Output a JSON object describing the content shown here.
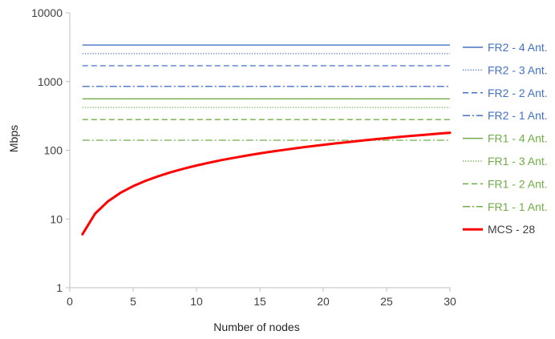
{
  "chart_data": {
    "type": "line",
    "title": "",
    "xlabel": "Number of nodes",
    "ylabel": "Mbps",
    "xlim": [
      0,
      30
    ],
    "ylim": [
      1,
      10000
    ],
    "yscale": "log",
    "grid": false,
    "legend_position": "right",
    "x_ticks": [
      "0",
      "5",
      "10",
      "15",
      "20",
      "25",
      "30"
    ],
    "x_tick_values": [
      0,
      5,
      10,
      15,
      20,
      25,
      30
    ],
    "y_ticks": [
      "1",
      "10",
      "100",
      "1000",
      "10000"
    ],
    "y_tick_values": [
      1,
      10,
      100,
      1000,
      10000
    ],
    "series": [
      {
        "name": "FR2 - 4 Ant.",
        "color": "#4472C4",
        "style": "solid",
        "x": [
          1,
          30
        ],
        "y": [
          3400,
          3400
        ]
      },
      {
        "name": "FR2 - 3 Ant.",
        "color": "#4472C4",
        "style": "dotted",
        "x": [
          1,
          30
        ],
        "y": [
          2550,
          2550
        ]
      },
      {
        "name": "FR2 - 2 Ant.",
        "color": "#4472C4",
        "style": "dashed",
        "x": [
          1,
          30
        ],
        "y": [
          1700,
          1700
        ]
      },
      {
        "name": "FR2 - 1 Ant.",
        "color": "#4472C4",
        "style": "dashdot",
        "x": [
          1,
          30
        ],
        "y": [
          850,
          850
        ]
      },
      {
        "name": "FR1 - 4 Ant.",
        "color": "#70AD47",
        "style": "solid",
        "x": [
          1,
          30
        ],
        "y": [
          560,
          560
        ]
      },
      {
        "name": "FR1 - 3 Ant.",
        "color": "#70AD47",
        "style": "dotted",
        "x": [
          1,
          30
        ],
        "y": [
          420,
          420
        ]
      },
      {
        "name": "FR1 - 2 Ant.",
        "color": "#70AD47",
        "style": "dashed",
        "x": [
          1,
          30
        ],
        "y": [
          280,
          280
        ]
      },
      {
        "name": "FR1 - 1 Ant.",
        "color": "#70AD47",
        "style": "dashdot",
        "x": [
          1,
          30
        ],
        "y": [
          140,
          140
        ]
      },
      {
        "name": "MCS - 28",
        "color": "#FF0000",
        "style": "thick",
        "x": [
          1,
          2,
          3,
          4,
          5,
          6,
          7,
          8,
          9,
          10,
          11,
          12,
          13,
          14,
          15,
          16,
          17,
          18,
          19,
          20,
          21,
          22,
          23,
          24,
          25,
          26,
          27,
          28,
          29,
          30
        ],
        "y": [
          6,
          12,
          18,
          24,
          30,
          36,
          42,
          48,
          54,
          60,
          66,
          72,
          78,
          84,
          90,
          96,
          102,
          108,
          114,
          120,
          126,
          132,
          138,
          144,
          150,
          156,
          162,
          168,
          174,
          180
        ]
      }
    ]
  }
}
